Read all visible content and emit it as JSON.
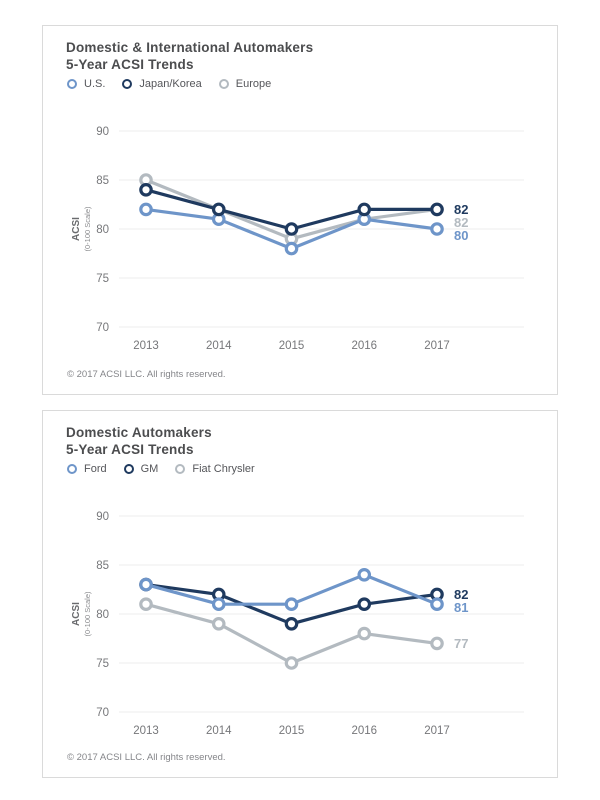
{
  "style": {
    "grid_color": "#ececec",
    "tick_color": "#76777a",
    "axis_title_color": "#6a6b6e",
    "axis_subtitle_color": "#8a8b8e",
    "title_color": "#4c4d4f",
    "copyright_color": "#85868a",
    "series_blue": "#6E95C9",
    "series_navy": "#1F3A5F",
    "series_gray": "#B3BAC0"
  },
  "chart_data": [
    {
      "type": "line",
      "title": "Domestic & International Automakers",
      "subtitle": "5-Year ACSI Trends",
      "x": [
        "2013",
        "2014",
        "2015",
        "2016",
        "2017"
      ],
      "series": [
        {
          "name": "U.S.",
          "color": "#6E95C9",
          "values": [
            82,
            81,
            78,
            81,
            80
          ],
          "end_label": "80"
        },
        {
          "name": "Japan/Korea",
          "color": "#1F3A5F",
          "values": [
            84,
            82,
            80,
            82,
            82
          ],
          "end_label": "82"
        },
        {
          "name": "Europe",
          "color": "#B3BAC0",
          "values": [
            85,
            82,
            79,
            81,
            82
          ],
          "end_label": "82"
        }
      ],
      "draw_order": [
        2,
        0,
        1
      ],
      "ylabel": "ACSI",
      "ylabel_sub": "(0-100 Scale)",
      "yticks": [
        90,
        85,
        80,
        75,
        70
      ],
      "ylim": [
        70,
        90
      ],
      "grid": true,
      "legend_position": "top-left",
      "copyright": "© 2017 ACSI LLC. All rights reserved."
    },
    {
      "type": "line",
      "title": "Domestic Automakers",
      "subtitle": "5-Year ACSI Trends",
      "x": [
        "2013",
        "2014",
        "2015",
        "2016",
        "2017"
      ],
      "series": [
        {
          "name": "Ford",
          "color": "#6E95C9",
          "values": [
            83,
            81,
            81,
            84,
            81
          ],
          "end_label": "81"
        },
        {
          "name": "GM",
          "color": "#1F3A5F",
          "values": [
            83,
            82,
            79,
            81,
            82
          ],
          "end_label": "82"
        },
        {
          "name": "Fiat Chrysler",
          "color": "#B3BAC0",
          "values": [
            81,
            79,
            75,
            78,
            77
          ],
          "end_label": "77"
        }
      ],
      "draw_order": [
        2,
        1,
        0
      ],
      "ylabel": "ACSI",
      "ylabel_sub": "(0-100 Scale)",
      "yticks": [
        90,
        85,
        80,
        75,
        70
      ],
      "ylim": [
        70,
        90
      ],
      "grid": true,
      "legend_position": "top-left",
      "copyright": "© 2017 ACSI LLC. All rights reserved."
    }
  ]
}
